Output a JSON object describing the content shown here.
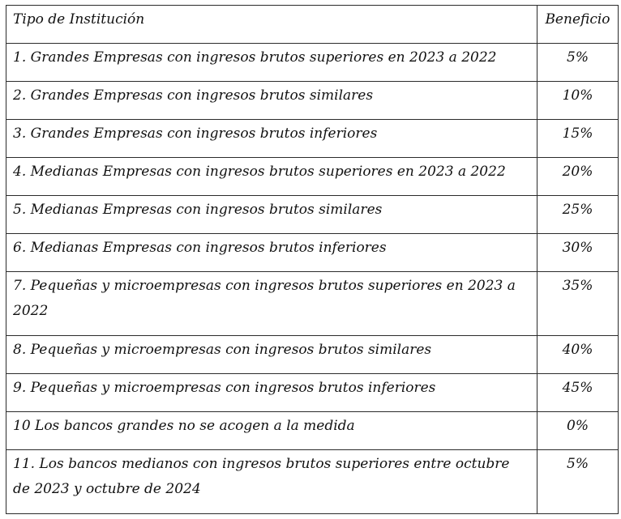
{
  "table": {
    "headers": {
      "type": "Tipo de Institución",
      "benefit": "Beneficio"
    },
    "rows": [
      {
        "type": "1. Grandes Empresas con ingresos brutos superiores en 2023 a 2022",
        "benefit": "5%"
      },
      {
        "type": "2. Grandes Empresas con ingresos brutos similares",
        "benefit": "10%"
      },
      {
        "type": "3. Grandes Empresas con ingresos brutos inferiores",
        "benefit": "15%"
      },
      {
        "type": "4. Medianas Empresas con ingresos brutos superiores en 2023 a 2022",
        "benefit": "20%"
      },
      {
        "type": "5. Medianas Empresas con ingresos brutos similares",
        "benefit": "25%"
      },
      {
        "type": "6. Medianas Empresas con ingresos brutos inferiores",
        "benefit": "30%"
      },
      {
        "type": "7. Pequeñas y microempresas con ingresos brutos superiores en 2023 a 2022",
        "benefit": "35%"
      },
      {
        "type": "8. Pequeñas y microempresas con ingresos brutos similares",
        "benefit": "40%"
      },
      {
        "type": "9. Pequeñas y microempresas con ingresos brutos inferiores",
        "benefit": "45%"
      },
      {
        "type": "10 Los bancos grandes no se acogen a la medida",
        "benefit": "0%"
      },
      {
        "type": "11. Los bancos medianos con ingresos brutos superiores entre octubre de 2023 y octubre de 2024",
        "benefit": "5%"
      }
    ]
  }
}
